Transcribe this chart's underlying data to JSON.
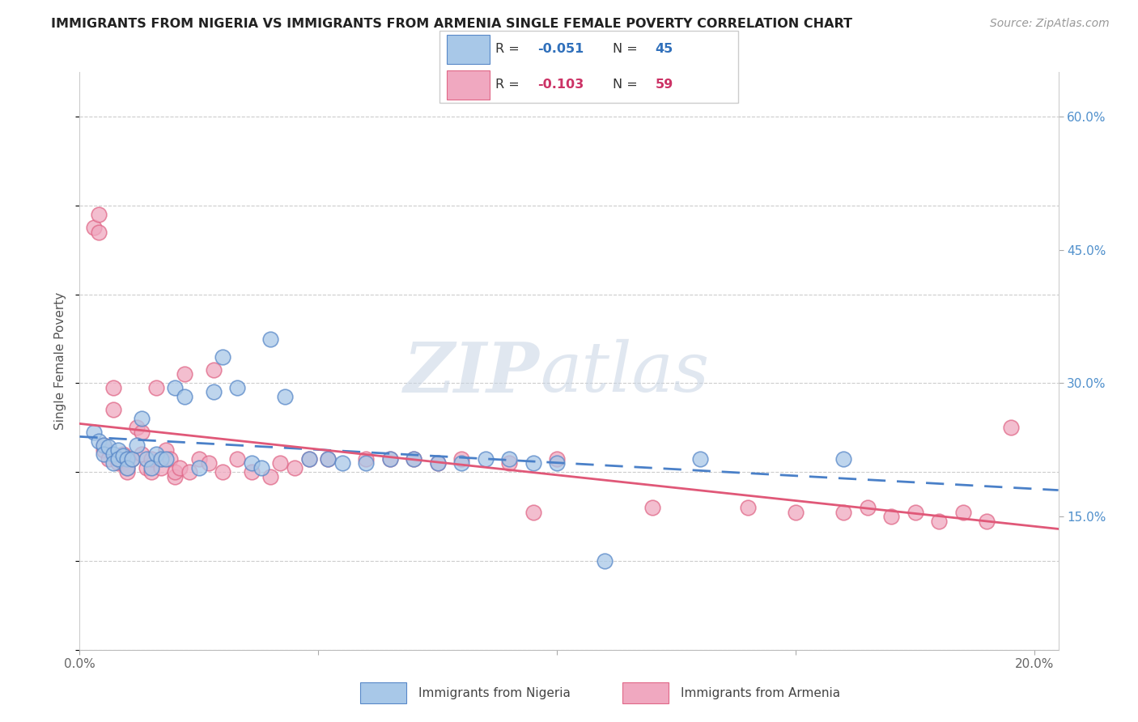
{
  "title": "IMMIGRANTS FROM NIGERIA VS IMMIGRANTS FROM ARMENIA SINGLE FEMALE POVERTY CORRELATION CHART",
  "source": "Source: ZipAtlas.com",
  "ylabel": "Single Female Poverty",
  "xlim": [
    0.0,
    0.205
  ],
  "ylim": [
    0.0,
    0.65
  ],
  "xtick_vals": [
    0.0,
    0.05,
    0.1,
    0.15,
    0.2
  ],
  "xtick_labels": [
    "0.0%",
    "",
    "",
    "",
    "20.0%"
  ],
  "ytick_vals": [
    0.15,
    0.3,
    0.45,
    0.6
  ],
  "ytick_labels": [
    "15.0%",
    "30.0%",
    "45.0%",
    "60.0%"
  ],
  "nigeria_R": -0.051,
  "nigeria_N": 45,
  "armenia_R": -0.103,
  "armenia_N": 59,
  "nigeria_color": "#a8c8e8",
  "armenia_color": "#f0a8c0",
  "nigeria_edge_color": "#5888c8",
  "armenia_edge_color": "#e06888",
  "nigeria_line_color": "#4a80c8",
  "armenia_line_color": "#e05878",
  "watermark_part1": "ZIP",
  "watermark_part2": "atlas",
  "nigeria_x": [
    0.003,
    0.004,
    0.005,
    0.005,
    0.006,
    0.007,
    0.007,
    0.008,
    0.008,
    0.009,
    0.01,
    0.01,
    0.011,
    0.012,
    0.013,
    0.014,
    0.015,
    0.016,
    0.017,
    0.018,
    0.02,
    0.022,
    0.025,
    0.028,
    0.03,
    0.033,
    0.036,
    0.038,
    0.04,
    0.043,
    0.048,
    0.052,
    0.055,
    0.06,
    0.065,
    0.07,
    0.075,
    0.08,
    0.085,
    0.09,
    0.095,
    0.1,
    0.11,
    0.13,
    0.16
  ],
  "nigeria_y": [
    0.245,
    0.235,
    0.23,
    0.22,
    0.228,
    0.22,
    0.21,
    0.225,
    0.215,
    0.218,
    0.215,
    0.205,
    0.215,
    0.23,
    0.26,
    0.215,
    0.205,
    0.22,
    0.215,
    0.215,
    0.295,
    0.285,
    0.205,
    0.29,
    0.33,
    0.295,
    0.21,
    0.205,
    0.35,
    0.285,
    0.215,
    0.215,
    0.21,
    0.21,
    0.215,
    0.215,
    0.21,
    0.21,
    0.215,
    0.215,
    0.21,
    0.21,
    0.1,
    0.215,
    0.215
  ],
  "armenia_x": [
    0.003,
    0.004,
    0.004,
    0.005,
    0.005,
    0.006,
    0.007,
    0.007,
    0.008,
    0.009,
    0.009,
    0.01,
    0.01,
    0.011,
    0.012,
    0.013,
    0.013,
    0.014,
    0.015,
    0.015,
    0.016,
    0.017,
    0.018,
    0.019,
    0.02,
    0.02,
    0.021,
    0.022,
    0.023,
    0.025,
    0.027,
    0.028,
    0.03,
    0.033,
    0.036,
    0.04,
    0.042,
    0.045,
    0.048,
    0.052,
    0.06,
    0.065,
    0.07,
    0.075,
    0.08,
    0.09,
    0.095,
    0.1,
    0.12,
    0.14,
    0.15,
    0.16,
    0.165,
    0.17,
    0.175,
    0.18,
    0.185,
    0.19,
    0.195
  ],
  "armenia_y": [
    0.475,
    0.47,
    0.49,
    0.225,
    0.23,
    0.215,
    0.295,
    0.27,
    0.21,
    0.22,
    0.21,
    0.205,
    0.2,
    0.215,
    0.25,
    0.245,
    0.22,
    0.205,
    0.2,
    0.215,
    0.295,
    0.205,
    0.225,
    0.215,
    0.195,
    0.2,
    0.205,
    0.31,
    0.2,
    0.215,
    0.21,
    0.315,
    0.2,
    0.215,
    0.2,
    0.195,
    0.21,
    0.205,
    0.215,
    0.215,
    0.215,
    0.215,
    0.215,
    0.21,
    0.215,
    0.21,
    0.155,
    0.215,
    0.16,
    0.16,
    0.155,
    0.155,
    0.16,
    0.15,
    0.155,
    0.145,
    0.155,
    0.145,
    0.25
  ]
}
